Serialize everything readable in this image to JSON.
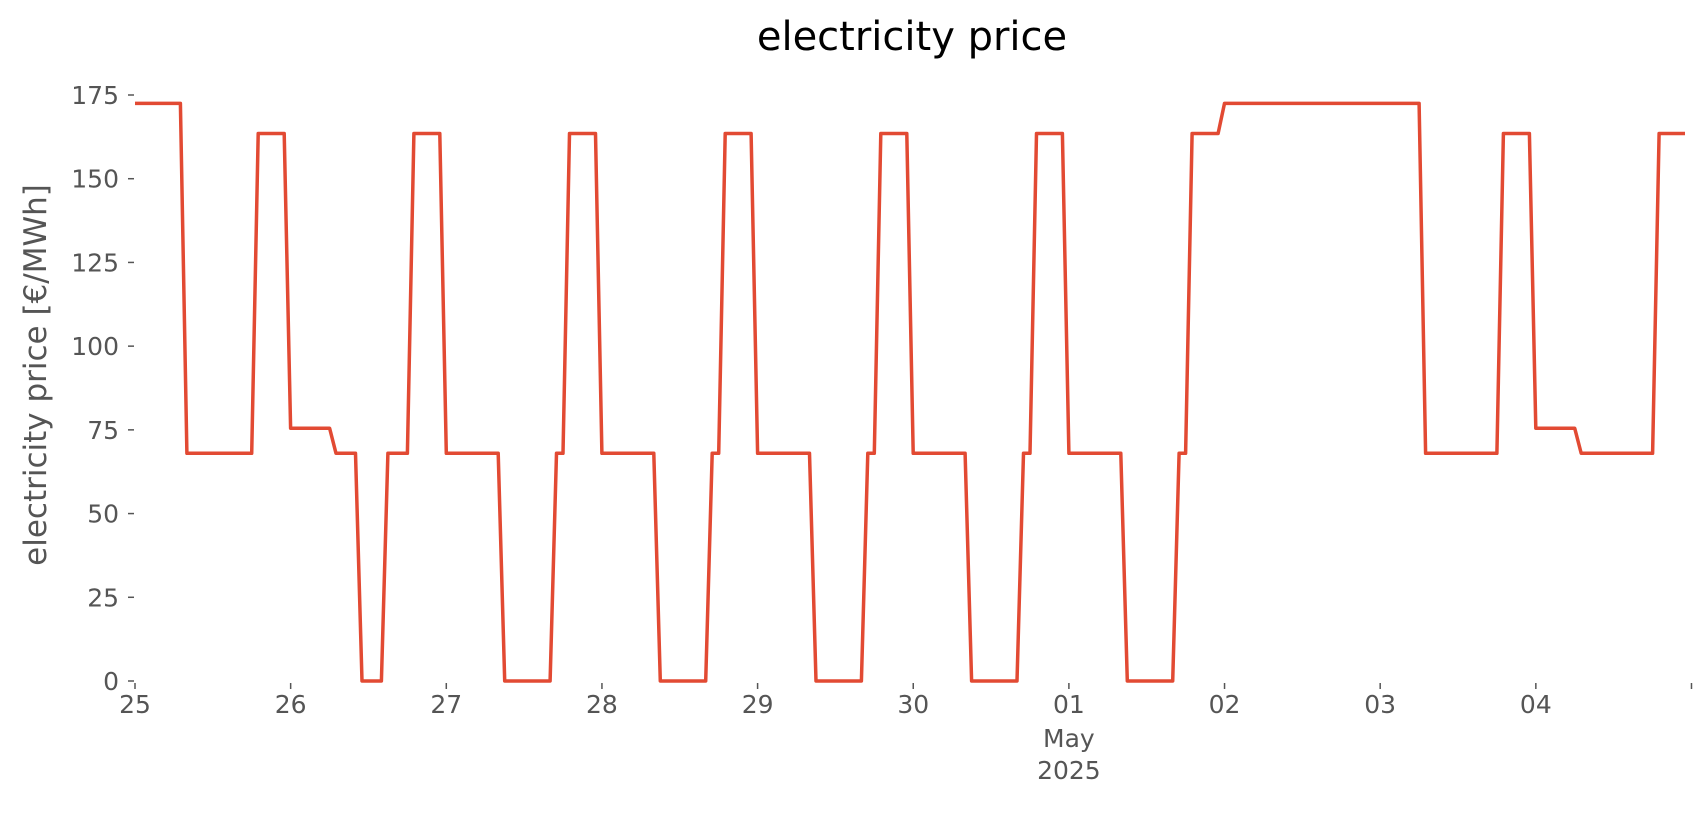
{
  "chart_data": {
    "type": "line",
    "title": "electricity price",
    "xlabel": "",
    "ylabel": "electricity price [€/MWh]",
    "ylim": [
      0,
      175
    ],
    "yticks": [
      0,
      25,
      50,
      75,
      100,
      125,
      150,
      175
    ],
    "xlim": [
      "2025-04-25 00:00",
      "2025-05-04 23:00"
    ],
    "xticks": [
      {
        "date": "2025-04-25",
        "label": "25"
      },
      {
        "date": "2025-04-26",
        "label": "26"
      },
      {
        "date": "2025-04-27",
        "label": "27"
      },
      {
        "date": "2025-04-28",
        "label": "28"
      },
      {
        "date": "2025-04-29",
        "label": "29"
      },
      {
        "date": "2025-04-30",
        "label": "30"
      },
      {
        "date": "2025-05-01",
        "label": "01",
        "sublabel_1": "May",
        "sublabel_2": "2025"
      },
      {
        "date": "2025-05-02",
        "label": "02"
      },
      {
        "date": "2025-05-03",
        "label": "03"
      },
      {
        "date": "2025-05-04",
        "label": "04"
      },
      {
        "date": "2025-05-05",
        "label": ""
      }
    ],
    "grid": false,
    "series": [
      {
        "color": "#e24a33",
        "points": [
          [
            "2025-04-25 00:00",
            172.5
          ],
          [
            "2025-04-25 07:00",
            172.5
          ],
          [
            "2025-04-25 08:00",
            68
          ],
          [
            "2025-04-25 18:00",
            68
          ],
          [
            "2025-04-25 19:00",
            163.5
          ],
          [
            "2025-04-25 23:00",
            163.5
          ],
          [
            "2025-04-26 00:00",
            75.5
          ],
          [
            "2025-04-26 06:00",
            75.5
          ],
          [
            "2025-04-26 07:00",
            68
          ],
          [
            "2025-04-26 10:00",
            68
          ],
          [
            "2025-04-26 11:00",
            0
          ],
          [
            "2025-04-26 14:00",
            0
          ],
          [
            "2025-04-26 15:00",
            68
          ],
          [
            "2025-04-26 18:00",
            68
          ],
          [
            "2025-04-26 19:00",
            163.5
          ],
          [
            "2025-04-26 23:00",
            163.5
          ],
          [
            "2025-04-27 00:00",
            68
          ],
          [
            "2025-04-27 08:00",
            68
          ],
          [
            "2025-04-27 09:00",
            0
          ],
          [
            "2025-04-27 16:00",
            0
          ],
          [
            "2025-04-27 17:00",
            68
          ],
          [
            "2025-04-27 18:00",
            68
          ],
          [
            "2025-04-27 19:00",
            163.5
          ],
          [
            "2025-04-27 23:00",
            163.5
          ],
          [
            "2025-04-28 00:00",
            68
          ],
          [
            "2025-04-28 08:00",
            68
          ],
          [
            "2025-04-28 09:00",
            0
          ],
          [
            "2025-04-28 16:00",
            0
          ],
          [
            "2025-04-28 17:00",
            68
          ],
          [
            "2025-04-28 18:00",
            68
          ],
          [
            "2025-04-28 19:00",
            163.5
          ],
          [
            "2025-04-28 23:00",
            163.5
          ],
          [
            "2025-04-29 00:00",
            68
          ],
          [
            "2025-04-29 08:00",
            68
          ],
          [
            "2025-04-29 09:00",
            0
          ],
          [
            "2025-04-29 16:00",
            0
          ],
          [
            "2025-04-29 17:00",
            68
          ],
          [
            "2025-04-29 18:00",
            68
          ],
          [
            "2025-04-29 19:00",
            163.5
          ],
          [
            "2025-04-29 23:00",
            163.5
          ],
          [
            "2025-04-30 00:00",
            68
          ],
          [
            "2025-04-30 08:00",
            68
          ],
          [
            "2025-04-30 09:00",
            0
          ],
          [
            "2025-04-30 16:00",
            0
          ],
          [
            "2025-04-30 17:00",
            68
          ],
          [
            "2025-04-30 18:00",
            68
          ],
          [
            "2025-04-30 19:00",
            163.5
          ],
          [
            "2025-04-30 23:00",
            163.5
          ],
          [
            "2025-05-01 00:00",
            68
          ],
          [
            "2025-05-01 08:00",
            68
          ],
          [
            "2025-05-01 09:00",
            0
          ],
          [
            "2025-05-01 16:00",
            0
          ],
          [
            "2025-05-01 17:00",
            68
          ],
          [
            "2025-05-01 18:00",
            68
          ],
          [
            "2025-05-01 19:00",
            163.5
          ],
          [
            "2025-05-01 23:00",
            163.5
          ],
          [
            "2025-05-02 00:00",
            172.5
          ],
          [
            "2025-05-03 06:00",
            172.5
          ],
          [
            "2025-05-03 07:00",
            68
          ],
          [
            "2025-05-03 18:00",
            68
          ],
          [
            "2025-05-03 19:00",
            163.5
          ],
          [
            "2025-05-03 23:00",
            163.5
          ],
          [
            "2025-05-04 00:00",
            75.5
          ],
          [
            "2025-05-04 06:00",
            75.5
          ],
          [
            "2025-05-04 07:00",
            68
          ],
          [
            "2025-05-04 18:00",
            68
          ],
          [
            "2025-05-04 19:00",
            163.5
          ],
          [
            "2025-05-04 23:00",
            163.5
          ]
        ]
      }
    ]
  }
}
